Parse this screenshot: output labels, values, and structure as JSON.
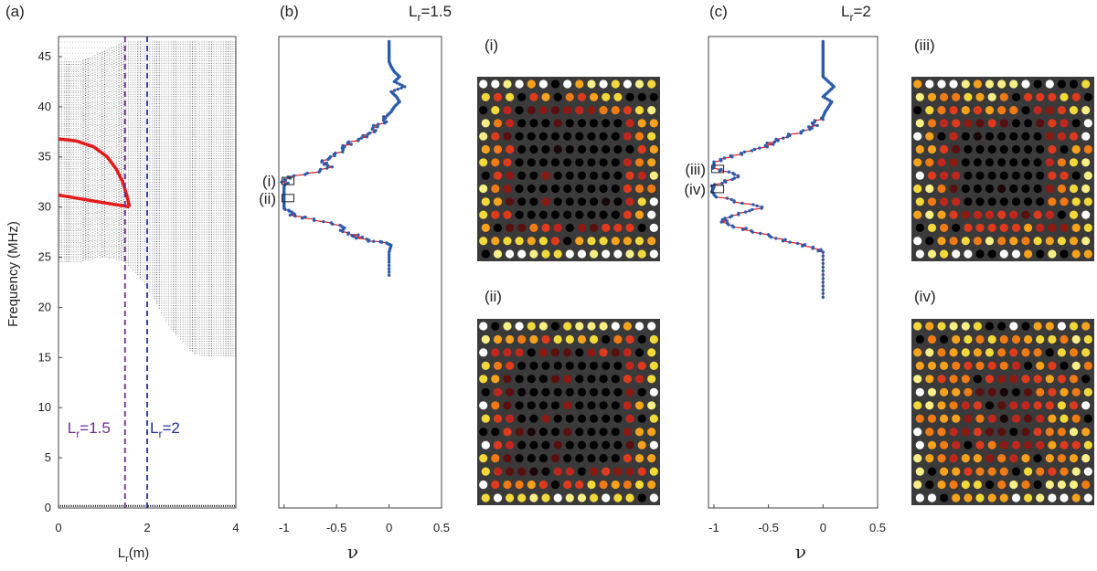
{
  "panels": {
    "a": "(a)",
    "b": "(b)",
    "c": "(c)",
    "i": "(i)",
    "ii": "(ii)",
    "iii": "(iii)",
    "iv": "(iv)"
  },
  "colors": {
    "dots": "#555555",
    "red_curve": "#e41a1c",
    "lr15_line": "#6a2c91",
    "lr2_line": "#1f2f99",
    "nu_line": "#e41a1c",
    "nu_points": "#2a5cad",
    "grid_bg": "#3a3a3a"
  },
  "chart_data": [
    {
      "id": "a",
      "type": "scatter",
      "ylabel": "Frequency (MHz)",
      "xlabel_main": "L",
      "xlabel_sub": "r",
      "xlabel_tail": "(m)",
      "xlim": [
        0,
        4
      ],
      "ylim": [
        0,
        47
      ],
      "xticks": [
        "0",
        "2",
        "4"
      ],
      "xtick_values": [
        0,
        2,
        4
      ],
      "yticks": [
        "0",
        "5",
        "10",
        "15",
        "20",
        "25",
        "30",
        "35",
        "40",
        "45"
      ],
      "ytick_values": [
        0,
        5,
        10,
        15,
        20,
        25,
        30,
        35,
        40,
        45
      ],
      "band_edges": {
        "lr": [
          0,
          0.5,
          1.0,
          1.5,
          2.0,
          2.5,
          3.0,
          3.3,
          4.0
        ],
        "lower": [
          24.5,
          24.5,
          25.0,
          24.5,
          22.0,
          18.0,
          15.5,
          15.0,
          15.0
        ],
        "upper": [
          44.5,
          44.5,
          45.5,
          46.5,
          46.5,
          46.5,
          46.5,
          46.5,
          46.5
        ]
      },
      "baseline": 0.2,
      "red_curve": {
        "upper": {
          "lr": [
            0,
            0.4,
            0.8,
            1.1,
            1.3,
            1.45,
            1.55,
            1.6
          ],
          "f": [
            36.8,
            36.6,
            36.0,
            35.0,
            33.8,
            32.5,
            31.0,
            30.0
          ]
        },
        "lower": {
          "lr": [
            0,
            0.4,
            0.8,
            1.2,
            1.5,
            1.6
          ],
          "f": [
            31.2,
            30.9,
            30.6,
            30.3,
            30.1,
            30.0
          ]
        }
      },
      "markers": [
        {
          "lr": 1.5,
          "label_main": "L",
          "label_sub": "r",
          "label_tail": "=1.5"
        },
        {
          "lr": 2.0,
          "label_main": "L",
          "label_sub": "r",
          "label_tail": "=2"
        }
      ]
    },
    {
      "id": "b",
      "type": "line",
      "title_main": "L",
      "title_sub": "r",
      "title_tail": "=1.5",
      "xlabel": "ν",
      "xlim": [
        -1.05,
        0.5
      ],
      "ylim": [
        0,
        47
      ],
      "xticks": [
        "-1",
        "-0.5",
        "0",
        "0.5"
      ],
      "xtick_values": [
        -1,
        -0.5,
        0,
        0.5
      ],
      "curve": {
        "f": [
          23.2,
          24.5,
          25.5,
          26.2,
          26.5,
          26.6,
          27.0,
          27.3,
          27.8,
          28.3,
          28.8,
          29.2,
          29.6,
          29.9,
          30.2,
          30.6,
          31.0,
          31.5,
          32.0,
          32.5,
          33.0,
          33.5,
          34.0,
          34.5,
          35.0,
          35.5,
          36.0,
          36.5,
          37.0,
          37.5,
          38.0,
          38.5,
          39.0,
          39.5,
          40.0,
          40.5,
          41.0,
          41.5,
          42.0,
          42.5,
          43.0,
          43.5,
          44.0,
          44.5,
          45.0,
          45.5,
          46.0,
          46.5
        ],
        "nu": [
          0.0,
          0.0,
          0.0,
          0.02,
          -0.05,
          -0.2,
          -0.3,
          -0.35,
          -0.45,
          -0.5,
          -0.75,
          -0.9,
          -0.98,
          -1.0,
          -1.0,
          -1.0,
          -1.0,
          -1.0,
          -1.0,
          -0.98,
          -0.95,
          -0.7,
          -0.55,
          -0.65,
          -0.55,
          -0.45,
          -0.42,
          -0.35,
          -0.25,
          -0.15,
          -0.12,
          -0.05,
          -0.03,
          0.02,
          0.05,
          0.1,
          0.07,
          0.02,
          0.15,
          0.05,
          0.1,
          0.05,
          0.02,
          0.0,
          0.0,
          0.0,
          0.0,
          0.0
        ]
      },
      "boxes": [
        {
          "label": "(i)",
          "f": 32.6
        },
        {
          "label": "(ii)",
          "f": 30.9
        }
      ]
    },
    {
      "id": "c",
      "type": "line",
      "title_main": "L",
      "title_sub": "r",
      "title_tail": "=2",
      "xlabel": "ν",
      "xlim": [
        -1.05,
        0.5
      ],
      "ylim": [
        0,
        47
      ],
      "xticks": [
        "-1",
        "-0.5",
        "0",
        "0.5"
      ],
      "xtick_values": [
        -1,
        -0.5,
        0,
        0.5
      ],
      "curve": {
        "f": [
          21.0,
          22.5,
          24.0,
          25.5,
          26.0,
          26.5,
          27.0,
          27.5,
          28.0,
          28.5,
          29.0,
          29.5,
          30.0,
          30.5,
          31.0,
          31.5,
          32.0,
          32.5,
          33.0,
          33.5,
          34.0,
          34.5,
          35.0,
          35.5,
          36.0,
          36.5,
          37.0,
          37.5,
          38.0,
          38.5,
          39.0,
          39.5,
          40.0,
          40.5,
          41.0,
          41.5,
          42.0,
          42.5,
          43.0,
          43.5,
          44.0,
          44.5,
          45.0,
          45.5,
          46.0,
          46.5
        ],
        "nu": [
          0.0,
          0.0,
          0.0,
          0.0,
          -0.1,
          -0.3,
          -0.45,
          -0.6,
          -0.8,
          -0.95,
          -0.85,
          -0.75,
          -0.55,
          -0.8,
          -0.95,
          -1.02,
          -1.0,
          -0.92,
          -0.75,
          -0.9,
          -1.0,
          -1.0,
          -0.85,
          -0.7,
          -0.55,
          -0.45,
          -0.35,
          -0.2,
          -0.1,
          -0.05,
          0.0,
          0.02,
          0.05,
          0.08,
          0.0,
          0.05,
          0.1,
          0.05,
          0.0,
          0.0,
          0.0,
          0.0,
          0.0,
          0.0,
          0.0,
          0.0
        ]
      },
      "boxes": [
        {
          "label": "(iii)",
          "f": 33.8
        },
        {
          "label": "(iv)",
          "f": 31.8
        }
      ]
    }
  ],
  "grids": [
    {
      "id": "i",
      "cols": 15,
      "rows": 14,
      "seed": 11,
      "hole": 0.62
    },
    {
      "id": "ii",
      "cols": 15,
      "rows": 14,
      "seed": 23,
      "hole": 0.66
    },
    {
      "id": "iii",
      "cols": 15,
      "rows": 14,
      "seed": 37,
      "hole": 0.45
    },
    {
      "id": "iv",
      "cols": 15,
      "rows": 14,
      "seed": 53,
      "hole": 0.1
    }
  ]
}
